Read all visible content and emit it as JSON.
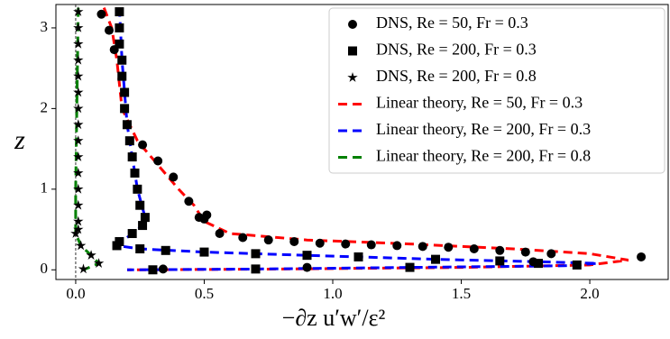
{
  "chart_data": {
    "type": "scatter",
    "xlabel": "−∂z u′w′/ε²",
    "ylabel": "z",
    "xlim": [
      -0.077,
      2.305
    ],
    "ylim": [
      -0.12,
      3.29
    ],
    "xticks": [
      {
        "value": 0,
        "label": "0.0"
      },
      0.5,
      {
        "value": 1,
        "label": "1.0"
      },
      1.5,
      {
        "value": 2,
        "label": "2.0"
      }
    ],
    "yticks": [
      0,
      1,
      2,
      3
    ],
    "legend": "upper right",
    "series": [
      {
        "name": "DNS, Re = 50, Fr = 0.3",
        "mode": "markers",
        "marker": "circle",
        "color": "#000000",
        "x": [
          0.1,
          0.13,
          0.15,
          0.2,
          0.26,
          0.32,
          0.38,
          0.44,
          0.48,
          0.5,
          0.51,
          0.56,
          0.65,
          0.75,
          0.85,
          0.95,
          1.05,
          1.15,
          1.25,
          1.35,
          1.45,
          1.55,
          1.65,
          1.75,
          1.85,
          2.2,
          1.78,
          0.9,
          0.34
        ],
        "values": [
          3.17,
          2.97,
          2.73,
          1.8,
          1.55,
          1.35,
          1.15,
          0.85,
          0.65,
          0.63,
          0.68,
          0.45,
          0.4,
          0.37,
          0.35,
          0.33,
          0.32,
          0.31,
          0.3,
          0.29,
          0.28,
          0.26,
          0.24,
          0.22,
          0.2,
          0.16,
          0.1,
          0.03,
          0.01
        ]
      },
      {
        "name": "DNS, Re = 200, Fr = 0.3",
        "mode": "markers",
        "marker": "square",
        "color": "#000000",
        "x": [
          0.17,
          0.17,
          0.17,
          0.18,
          0.18,
          0.19,
          0.19,
          0.2,
          0.21,
          0.22,
          0.23,
          0.24,
          0.25,
          0.27,
          0.26,
          0.22,
          0.17,
          0.16,
          0.25,
          0.35,
          0.5,
          0.7,
          0.9,
          1.1,
          1.4,
          1.65,
          1.8,
          1.95,
          1.3,
          0.7,
          0.3
        ],
        "values": [
          3.2,
          3.0,
          2.8,
          2.6,
          2.4,
          2.2,
          2.0,
          1.8,
          1.6,
          1.4,
          1.2,
          1.0,
          0.8,
          0.65,
          0.55,
          0.45,
          0.35,
          0.3,
          0.26,
          0.24,
          0.22,
          0.2,
          0.18,
          0.16,
          0.13,
          0.11,
          0.08,
          0.06,
          0.03,
          0.01,
          0.0
        ]
      },
      {
        "name": "DNS, Re = 200, Fr = 0.8",
        "mode": "markers",
        "marker": "star",
        "color": "#000000",
        "x": [
          0.01,
          0.01,
          0.01,
          0.01,
          0.01,
          0.01,
          0.01,
          0.01,
          0.01,
          0.01,
          0.01,
          0.01,
          0.01,
          0.01,
          0.01,
          0.0,
          0.02,
          0.06,
          0.09,
          0.03
        ],
        "values": [
          3.2,
          3.0,
          2.8,
          2.6,
          2.4,
          2.2,
          2.0,
          1.8,
          1.6,
          1.4,
          1.2,
          1.0,
          0.8,
          0.6,
          0.5,
          0.45,
          0.3,
          0.18,
          0.08,
          0.01
        ]
      },
      {
        "name": "Linear theory, Re = 50, Fr = 0.3",
        "mode": "line",
        "color": "#ff0000",
        "x": [
          0.11,
          0.14,
          0.16,
          0.18,
          0.24,
          0.32,
          0.4,
          0.46,
          0.5,
          0.6,
          0.9,
          1.3,
          1.7,
          2.0,
          2.15,
          2.0,
          1.5,
          0.8,
          0.2
        ],
        "values": [
          3.25,
          3.0,
          2.6,
          2.0,
          1.6,
          1.3,
          1.0,
          0.8,
          0.6,
          0.45,
          0.37,
          0.32,
          0.26,
          0.2,
          0.12,
          0.06,
          0.03,
          0.01,
          0.0
        ]
      },
      {
        "name": "Linear theory, Re = 200, Fr = 0.3",
        "mode": "line",
        "color": "#0000ff",
        "x": [
          0.17,
          0.18,
          0.2,
          0.22,
          0.24,
          0.27,
          0.26,
          0.22,
          0.16,
          0.25,
          0.5,
          0.9,
          1.4,
          1.8,
          2.03,
          1.9,
          1.3,
          0.7,
          0.2
        ],
        "values": [
          3.25,
          2.6,
          1.8,
          1.4,
          1.0,
          0.65,
          0.55,
          0.45,
          0.3,
          0.26,
          0.22,
          0.18,
          0.13,
          0.1,
          0.08,
          0.05,
          0.03,
          0.01,
          0.0
        ]
      },
      {
        "name": "Linear theory, Re = 200, Fr = 0.8",
        "mode": "line",
        "color": "#008000",
        "x": [
          0.01,
          0.0,
          0.0,
          0.02,
          0.06,
          0.09,
          0.03
        ],
        "values": [
          3.25,
          1.0,
          0.45,
          0.3,
          0.18,
          0.08,
          0.0
        ]
      }
    ]
  }
}
